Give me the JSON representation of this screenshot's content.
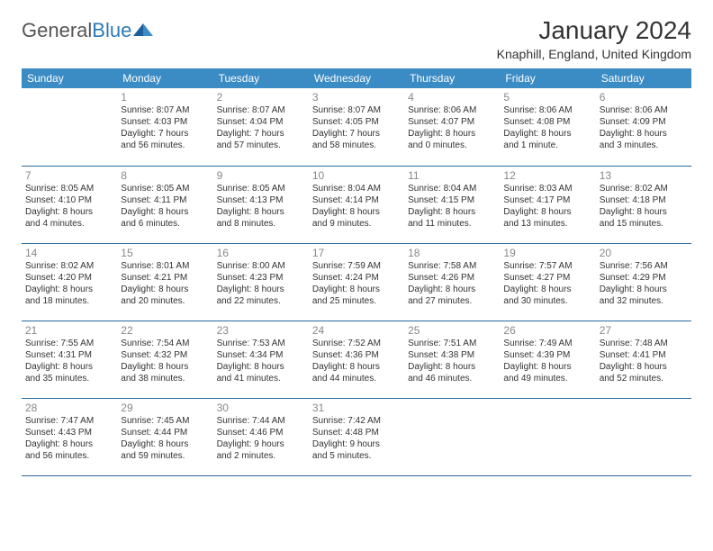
{
  "brand": {
    "part1": "General",
    "part2": "Blue"
  },
  "header": {
    "title": "January 2024",
    "location": "Knaphill, England, United Kingdom"
  },
  "styling": {
    "header_bg": "#3b8bc4",
    "header_text": "#ffffff",
    "row_border": "#2a6a9e",
    "daynum_color": "#888888",
    "body_text": "#333333",
    "title_fontsize": 28,
    "location_fontsize": 14,
    "dayhead_fontsize": 12,
    "cell_fontsize": 10
  },
  "dayNames": [
    "Sunday",
    "Monday",
    "Tuesday",
    "Wednesday",
    "Thursday",
    "Friday",
    "Saturday"
  ],
  "weeks": [
    [
      null,
      {
        "n": "1",
        "sr": "Sunrise: 8:07 AM",
        "ss": "Sunset: 4:03 PM",
        "d1": "Daylight: 7 hours",
        "d2": "and 56 minutes."
      },
      {
        "n": "2",
        "sr": "Sunrise: 8:07 AM",
        "ss": "Sunset: 4:04 PM",
        "d1": "Daylight: 7 hours",
        "d2": "and 57 minutes."
      },
      {
        "n": "3",
        "sr": "Sunrise: 8:07 AM",
        "ss": "Sunset: 4:05 PM",
        "d1": "Daylight: 7 hours",
        "d2": "and 58 minutes."
      },
      {
        "n": "4",
        "sr": "Sunrise: 8:06 AM",
        "ss": "Sunset: 4:07 PM",
        "d1": "Daylight: 8 hours",
        "d2": "and 0 minutes."
      },
      {
        "n": "5",
        "sr": "Sunrise: 8:06 AM",
        "ss": "Sunset: 4:08 PM",
        "d1": "Daylight: 8 hours",
        "d2": "and 1 minute."
      },
      {
        "n": "6",
        "sr": "Sunrise: 8:06 AM",
        "ss": "Sunset: 4:09 PM",
        "d1": "Daylight: 8 hours",
        "d2": "and 3 minutes."
      }
    ],
    [
      {
        "n": "7",
        "sr": "Sunrise: 8:05 AM",
        "ss": "Sunset: 4:10 PM",
        "d1": "Daylight: 8 hours",
        "d2": "and 4 minutes."
      },
      {
        "n": "8",
        "sr": "Sunrise: 8:05 AM",
        "ss": "Sunset: 4:11 PM",
        "d1": "Daylight: 8 hours",
        "d2": "and 6 minutes."
      },
      {
        "n": "9",
        "sr": "Sunrise: 8:05 AM",
        "ss": "Sunset: 4:13 PM",
        "d1": "Daylight: 8 hours",
        "d2": "and 8 minutes."
      },
      {
        "n": "10",
        "sr": "Sunrise: 8:04 AM",
        "ss": "Sunset: 4:14 PM",
        "d1": "Daylight: 8 hours",
        "d2": "and 9 minutes."
      },
      {
        "n": "11",
        "sr": "Sunrise: 8:04 AM",
        "ss": "Sunset: 4:15 PM",
        "d1": "Daylight: 8 hours",
        "d2": "and 11 minutes."
      },
      {
        "n": "12",
        "sr": "Sunrise: 8:03 AM",
        "ss": "Sunset: 4:17 PM",
        "d1": "Daylight: 8 hours",
        "d2": "and 13 minutes."
      },
      {
        "n": "13",
        "sr": "Sunrise: 8:02 AM",
        "ss": "Sunset: 4:18 PM",
        "d1": "Daylight: 8 hours",
        "d2": "and 15 minutes."
      }
    ],
    [
      {
        "n": "14",
        "sr": "Sunrise: 8:02 AM",
        "ss": "Sunset: 4:20 PM",
        "d1": "Daylight: 8 hours",
        "d2": "and 18 minutes."
      },
      {
        "n": "15",
        "sr": "Sunrise: 8:01 AM",
        "ss": "Sunset: 4:21 PM",
        "d1": "Daylight: 8 hours",
        "d2": "and 20 minutes."
      },
      {
        "n": "16",
        "sr": "Sunrise: 8:00 AM",
        "ss": "Sunset: 4:23 PM",
        "d1": "Daylight: 8 hours",
        "d2": "and 22 minutes."
      },
      {
        "n": "17",
        "sr": "Sunrise: 7:59 AM",
        "ss": "Sunset: 4:24 PM",
        "d1": "Daylight: 8 hours",
        "d2": "and 25 minutes."
      },
      {
        "n": "18",
        "sr": "Sunrise: 7:58 AM",
        "ss": "Sunset: 4:26 PM",
        "d1": "Daylight: 8 hours",
        "d2": "and 27 minutes."
      },
      {
        "n": "19",
        "sr": "Sunrise: 7:57 AM",
        "ss": "Sunset: 4:27 PM",
        "d1": "Daylight: 8 hours",
        "d2": "and 30 minutes."
      },
      {
        "n": "20",
        "sr": "Sunrise: 7:56 AM",
        "ss": "Sunset: 4:29 PM",
        "d1": "Daylight: 8 hours",
        "d2": "and 32 minutes."
      }
    ],
    [
      {
        "n": "21",
        "sr": "Sunrise: 7:55 AM",
        "ss": "Sunset: 4:31 PM",
        "d1": "Daylight: 8 hours",
        "d2": "and 35 minutes."
      },
      {
        "n": "22",
        "sr": "Sunrise: 7:54 AM",
        "ss": "Sunset: 4:32 PM",
        "d1": "Daylight: 8 hours",
        "d2": "and 38 minutes."
      },
      {
        "n": "23",
        "sr": "Sunrise: 7:53 AM",
        "ss": "Sunset: 4:34 PM",
        "d1": "Daylight: 8 hours",
        "d2": "and 41 minutes."
      },
      {
        "n": "24",
        "sr": "Sunrise: 7:52 AM",
        "ss": "Sunset: 4:36 PM",
        "d1": "Daylight: 8 hours",
        "d2": "and 44 minutes."
      },
      {
        "n": "25",
        "sr": "Sunrise: 7:51 AM",
        "ss": "Sunset: 4:38 PM",
        "d1": "Daylight: 8 hours",
        "d2": "and 46 minutes."
      },
      {
        "n": "26",
        "sr": "Sunrise: 7:49 AM",
        "ss": "Sunset: 4:39 PM",
        "d1": "Daylight: 8 hours",
        "d2": "and 49 minutes."
      },
      {
        "n": "27",
        "sr": "Sunrise: 7:48 AM",
        "ss": "Sunset: 4:41 PM",
        "d1": "Daylight: 8 hours",
        "d2": "and 52 minutes."
      }
    ],
    [
      {
        "n": "28",
        "sr": "Sunrise: 7:47 AM",
        "ss": "Sunset: 4:43 PM",
        "d1": "Daylight: 8 hours",
        "d2": "and 56 minutes."
      },
      {
        "n": "29",
        "sr": "Sunrise: 7:45 AM",
        "ss": "Sunset: 4:44 PM",
        "d1": "Daylight: 8 hours",
        "d2": "and 59 minutes."
      },
      {
        "n": "30",
        "sr": "Sunrise: 7:44 AM",
        "ss": "Sunset: 4:46 PM",
        "d1": "Daylight: 9 hours",
        "d2": "and 2 minutes."
      },
      {
        "n": "31",
        "sr": "Sunrise: 7:42 AM",
        "ss": "Sunset: 4:48 PM",
        "d1": "Daylight: 9 hours",
        "d2": "and 5 minutes."
      },
      null,
      null,
      null
    ]
  ]
}
